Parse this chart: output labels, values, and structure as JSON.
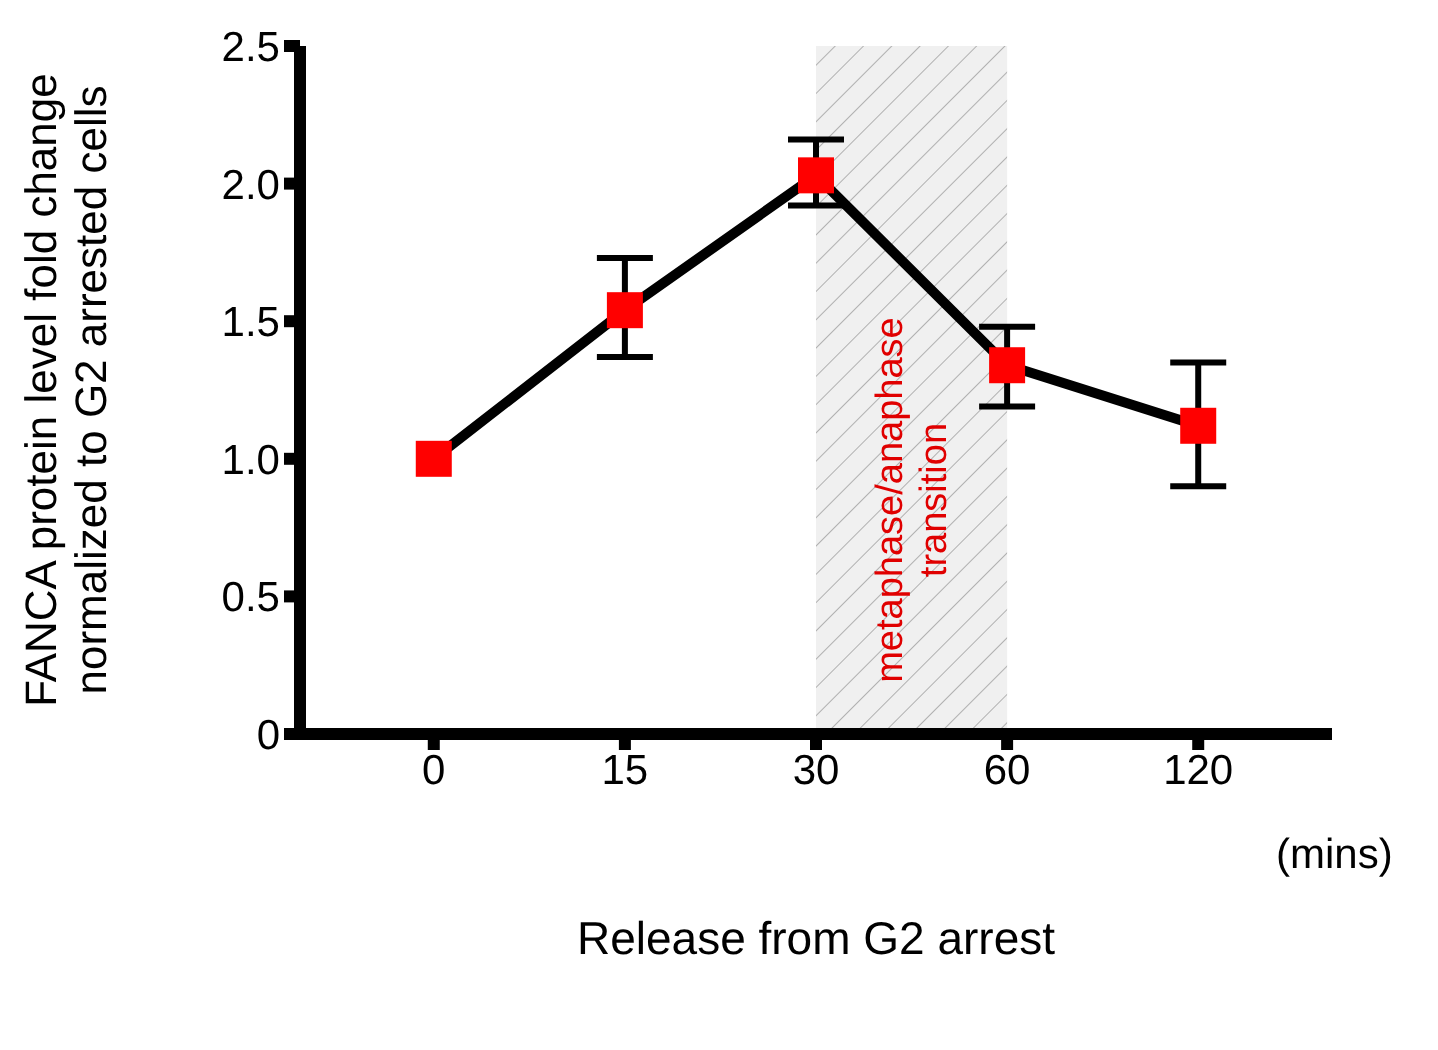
{
  "chart_data": {
    "type": "line",
    "xlabel": "Release from G2 arrest",
    "ylabel": "FANCA protein level fold change\nnormalized to G2 arrested cells",
    "categories": [
      "0",
      "15",
      "30",
      "60",
      "120"
    ],
    "series": [
      {
        "color": "#ff0000",
        "values": [
          1.0,
          1.54,
          2.03,
          1.34,
          1.12
        ],
        "errors": [
          null,
          [
            1.37,
            1.73
          ],
          [
            1.92,
            2.16
          ],
          [
            1.19,
            1.48
          ],
          [
            0.9,
            1.35
          ]
        ]
      }
    ],
    "ylim": [
      0,
      2.5
    ],
    "yticks": [
      0,
      0.5,
      {
        "value": 1,
        "label": "1.0"
      },
      1.5,
      {
        "value": 2,
        "label": "2.0"
      },
      2.5
    ],
    "marker": "square",
    "line_style": "solid",
    "bands": [
      {
        "axis": "x",
        "from": "30",
        "to": "60",
        "label": "metaphase/anaphase\ntransition",
        "color": "#f0f0f0"
      }
    ],
    "annotations": [
      "(mins)"
    ]
  }
}
